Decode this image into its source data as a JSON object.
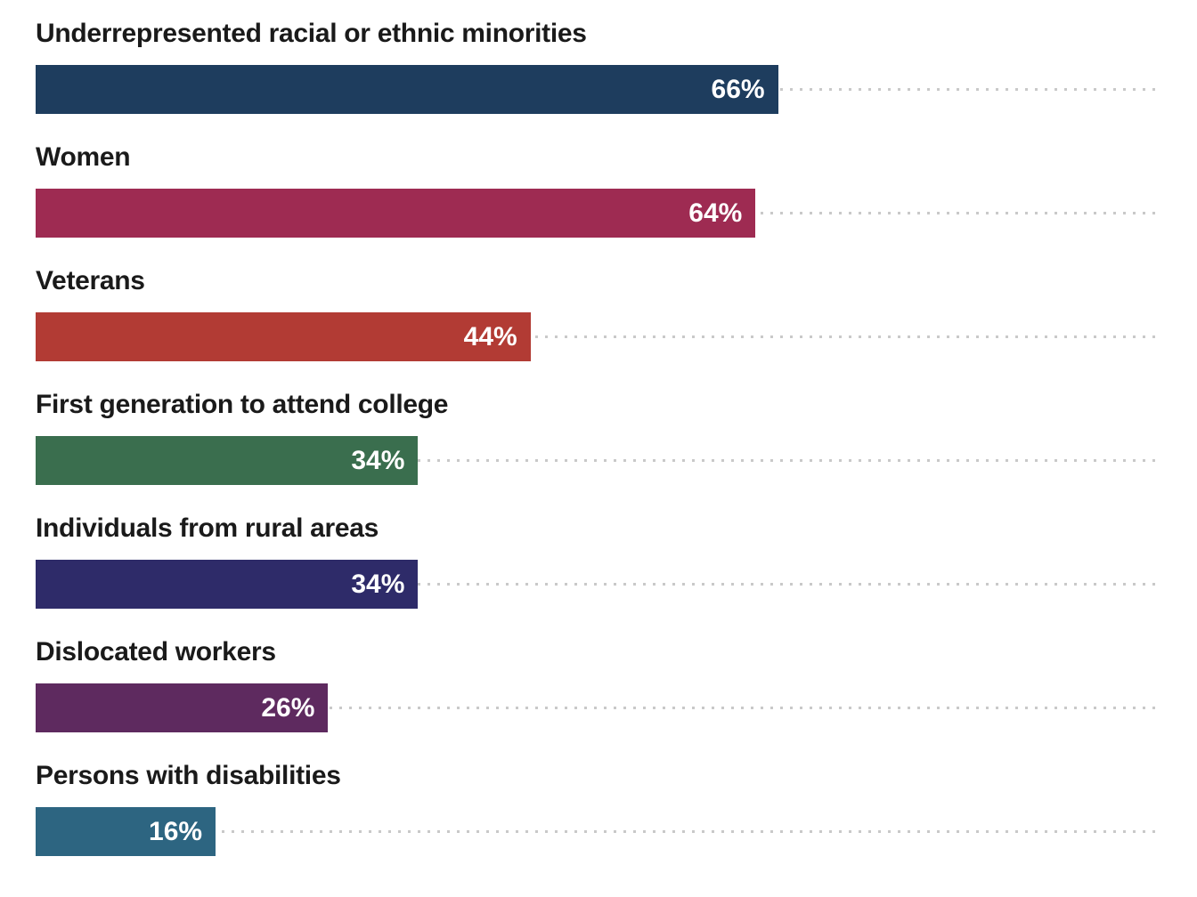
{
  "chart_data": {
    "type": "bar",
    "orientation": "horizontal",
    "title": "",
    "xlabel": "",
    "ylabel": "",
    "xlim": [
      0,
      100
    ],
    "value_suffix": "%",
    "grid": "dotted-leader-lines",
    "legend": "none",
    "background_color": "#ffffff",
    "label_color": "#1a1a1a",
    "leader_dot_color": "#c9c9c9",
    "categories": [
      "Underrepresented racial or ethnic minorities",
      "Women",
      "Veterans",
      "First generation to attend college",
      "Individuals from rural areas",
      "Dislocated workers",
      "Persons with disabilities"
    ],
    "values": [
      66,
      64,
      44,
      34,
      34,
      26,
      16
    ],
    "rows": [
      {
        "label": "Underrepresented racial or ethnic minorities",
        "value": 66,
        "value_label": "66%",
        "color": "#1e3d5e"
      },
      {
        "label": "Women",
        "value": 64,
        "value_label": "64%",
        "color": "#9e2b52"
      },
      {
        "label": "Veterans",
        "value": 44,
        "value_label": "44%",
        "color": "#b23b34"
      },
      {
        "label": "First generation to attend college",
        "value": 34,
        "value_label": "34%",
        "color": "#3a6e4e"
      },
      {
        "label": "Individuals from rural areas",
        "value": 34,
        "value_label": "34%",
        "color": "#2e2b69"
      },
      {
        "label": "Dislocated workers",
        "value": 26,
        "value_label": "26%",
        "color": "#5e2a5f"
      },
      {
        "label": "Persons with disabilities",
        "value": 16,
        "value_label": "16%",
        "color": "#2d6581"
      }
    ]
  }
}
